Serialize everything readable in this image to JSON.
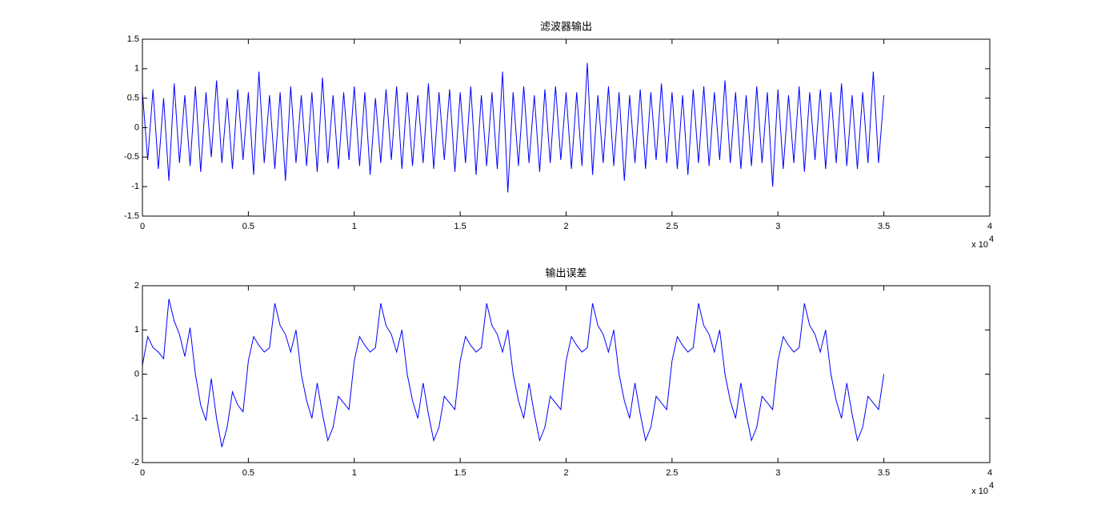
{
  "chart_data": [
    {
      "type": "line",
      "title": "滤波器输出",
      "color": "#0000ff",
      "x_multiplier": "x 10",
      "x_exponent": "4",
      "xlim": [
        0,
        40000
      ],
      "xticks": [
        {
          "value": 0,
          "label": "0"
        },
        {
          "value": 5000,
          "label": "0.5"
        },
        {
          "value": 10000,
          "label": "1"
        },
        {
          "value": 15000,
          "label": "1.5"
        },
        {
          "value": 20000,
          "label": "2"
        },
        {
          "value": 25000,
          "label": "2.5"
        },
        {
          "value": 30000,
          "label": "3"
        },
        {
          "value": 35000,
          "label": "3.5"
        },
        {
          "value": 40000,
          "label": "4"
        }
      ],
      "ylim": [
        -1.5,
        1.5
      ],
      "yticks": [
        -1.5,
        -1,
        -0.5,
        0,
        0.5,
        1,
        1.5
      ],
      "x": [
        0,
        250,
        500,
        750,
        1000,
        1250,
        1500,
        1750,
        2000,
        2250,
        2500,
        2750,
        3000,
        3250,
        3500,
        3750,
        4000,
        4250,
        4500,
        4750,
        5000,
        5250,
        5500,
        5750,
        6000,
        6250,
        6500,
        6750,
        7000,
        7250,
        7500,
        7750,
        8000,
        8250,
        8500,
        8750,
        9000,
        9250,
        9500,
        9750,
        10000,
        10250,
        10500,
        10750,
        11000,
        11250,
        11500,
        11750,
        12000,
        12250,
        12500,
        12750,
        13000,
        13250,
        13500,
        13750,
        14000,
        14250,
        14500,
        14750,
        15000,
        15250,
        15500,
        15750,
        16000,
        16250,
        16500,
        16750,
        17000,
        17250,
        17500,
        17750,
        18000,
        18250,
        18500,
        18750,
        19000,
        19250,
        19500,
        19750,
        20000,
        20250,
        20500,
        20750,
        21000,
        21250,
        21500,
        21750,
        22000,
        22250,
        22500,
        22750,
        23000,
        23250,
        23500,
        23750,
        24000,
        24250,
        24500,
        24750,
        25000,
        25250,
        25500,
        25750,
        26000,
        26250,
        26500,
        26750,
        27000,
        27250,
        27500,
        27750,
        28000,
        28250,
        28500,
        28750,
        29000,
        29250,
        29500,
        29750,
        30000,
        30250,
        30500,
        30750,
        31000,
        31250,
        31500,
        31750,
        32000,
        32250,
        32500,
        32750,
        33000,
        33250,
        33500,
        33750,
        34000,
        34250,
        34500,
        34750,
        35000
      ],
      "values": [
        0.6,
        -0.55,
        0.65,
        -0.7,
        0.5,
        -0.9,
        0.75,
        -0.6,
        0.55,
        -0.65,
        0.7,
        -0.75,
        0.6,
        -0.5,
        0.8,
        -0.6,
        0.5,
        -0.7,
        0.65,
        -0.55,
        0.6,
        -0.8,
        0.95,
        -0.6,
        0.55,
        -0.7,
        0.6,
        -0.9,
        0.7,
        -0.6,
        0.55,
        -0.65,
        0.6,
        -0.75,
        0.85,
        -0.6,
        0.55,
        -0.7,
        0.6,
        -0.55,
        0.7,
        -0.65,
        0.6,
        -0.8,
        0.5,
        -0.6,
        0.65,
        -0.55,
        0.7,
        -0.7,
        0.6,
        -0.65,
        0.55,
        -0.6,
        0.75,
        -0.7,
        0.6,
        -0.55,
        0.65,
        -0.75,
        0.6,
        -0.6,
        0.7,
        -0.8,
        0.55,
        -0.65,
        0.6,
        -0.7,
        0.95,
        -1.1,
        0.6,
        -0.65,
        0.7,
        -0.6,
        0.55,
        -0.75,
        0.65,
        -0.6,
        0.7,
        -0.55,
        0.6,
        -0.7,
        0.6,
        -0.65,
        1.1,
        -0.8,
        0.55,
        -0.6,
        0.7,
        -0.65,
        0.6,
        -0.9,
        0.55,
        -0.6,
        0.65,
        -0.7,
        0.6,
        -0.55,
        0.75,
        -0.6,
        0.6,
        -0.7,
        0.55,
        -0.8,
        0.65,
        -0.6,
        0.7,
        -0.65,
        0.6,
        -0.55,
        0.8,
        -0.6,
        0.6,
        -0.7,
        0.55,
        -0.65,
        0.7,
        -0.6,
        0.6,
        -1.0,
        0.65,
        -0.7,
        0.55,
        -0.6,
        0.7,
        -0.75,
        0.6,
        -0.55,
        0.65,
        -0.7,
        0.6,
        -0.6,
        0.75,
        -0.65,
        0.55,
        -0.7,
        0.6,
        -0.6,
        0.95,
        -0.6,
        0.55
      ]
    },
    {
      "type": "line",
      "title": "输出误差",
      "color": "#0000ff",
      "x_multiplier": "x 10",
      "x_exponent": "4",
      "xlim": [
        0,
        40000
      ],
      "xticks": [
        {
          "value": 0,
          "label": "0"
        },
        {
          "value": 5000,
          "label": "0.5"
        },
        {
          "value": 10000,
          "label": "1"
        },
        {
          "value": 15000,
          "label": "1.5"
        },
        {
          "value": 20000,
          "label": "2"
        },
        {
          "value": 25000,
          "label": "2.5"
        },
        {
          "value": 30000,
          "label": "3"
        },
        {
          "value": 35000,
          "label": "3.5"
        },
        {
          "value": 40000,
          "label": "4"
        }
      ],
      "ylim": [
        -2,
        2
      ],
      "yticks": [
        -2,
        -1,
        0,
        1,
        2
      ],
      "x": [
        0,
        250,
        500,
        750,
        1000,
        1250,
        1500,
        1750,
        2000,
        2250,
        2500,
        2750,
        3000,
        3250,
        3500,
        3750,
        4000,
        4250,
        4500,
        4750,
        5000,
        5250,
        5500,
        5750,
        6000,
        6250,
        6500,
        6750,
        7000,
        7250,
        7500,
        7750,
        8000,
        8250,
        8500,
        8750,
        9000,
        9250,
        9500,
        9750,
        10000,
        10250,
        10500,
        10750,
        11000,
        11250,
        11500,
        11750,
        12000,
        12250,
        12500,
        12750,
        13000,
        13250,
        13500,
        13750,
        14000,
        14250,
        14500,
        14750,
        15000,
        15250,
        15500,
        15750,
        16000,
        16250,
        16500,
        16750,
        17000,
        17250,
        17500,
        17750,
        18000,
        18250,
        18500,
        18750,
        19000,
        19250,
        19500,
        19750,
        20000,
        20250,
        20500,
        20750,
        21000,
        21250,
        21500,
        21750,
        22000,
        22250,
        22500,
        22750,
        23000,
        23250,
        23500,
        23750,
        24000,
        24250,
        24500,
        24750,
        25000,
        25250,
        25500,
        25750,
        26000,
        26250,
        26500,
        26750,
        27000,
        27250,
        27500,
        27750,
        28000,
        28250,
        28500,
        28750,
        29000,
        29250,
        29500,
        29750,
        30000,
        30250,
        30500,
        30750,
        31000,
        31250,
        31500,
        31750,
        32000,
        32250,
        32500,
        32750,
        33000,
        33250,
        33500,
        33750,
        34000,
        34250,
        34500,
        34750,
        35000
      ],
      "values": [
        0.2,
        0.85,
        0.6,
        0.5,
        0.35,
        1.7,
        1.2,
        0.9,
        0.4,
        1.05,
        0.0,
        -0.7,
        -1.05,
        -0.1,
        -1.0,
        -1.65,
        -1.2,
        -0.4,
        -0.7,
        -0.85,
        0.3,
        0.85,
        0.65,
        0.5,
        0.6,
        1.6,
        1.1,
        0.9,
        0.5,
        1.0,
        0.0,
        -0.6,
        -1.0,
        -0.2,
        -0.9,
        -1.5,
        -1.2,
        -0.5,
        -0.65,
        -0.8,
        0.3,
        0.85,
        0.65,
        0.5,
        0.6,
        1.6,
        1.1,
        0.9,
        0.5,
        1.0,
        0.0,
        -0.6,
        -1.0,
        -0.2,
        -0.9,
        -1.5,
        -1.2,
        -0.5,
        -0.65,
        -0.8,
        0.3,
        0.85,
        0.65,
        0.5,
        0.6,
        1.6,
        1.1,
        0.9,
        0.5,
        1.0,
        0.0,
        -0.6,
        -1.0,
        -0.2,
        -0.9,
        -1.5,
        -1.2,
        -0.5,
        -0.65,
        -0.8,
        0.3,
        0.85,
        0.65,
        0.5,
        0.6,
        1.6,
        1.1,
        0.9,
        0.5,
        1.0,
        0.0,
        -0.6,
        -1.0,
        -0.2,
        -0.9,
        -1.5,
        -1.2,
        -0.5,
        -0.65,
        -0.8,
        0.3,
        0.85,
        0.65,
        0.5,
        0.6,
        1.6,
        1.1,
        0.9,
        0.5,
        1.0,
        0.0,
        -0.6,
        -1.0,
        -0.2,
        -0.9,
        -1.5,
        -1.2,
        -0.5,
        -0.65,
        -0.8,
        0.3,
        0.85,
        0.65,
        0.5,
        0.6,
        1.6,
        1.1,
        0.9,
        0.5,
        1.0,
        0.0,
        -0.6,
        -1.0,
        -0.2,
        -0.9,
        -1.5,
        -1.2,
        -0.5,
        -0.65,
        -0.8,
        0.0
      ]
    }
  ]
}
